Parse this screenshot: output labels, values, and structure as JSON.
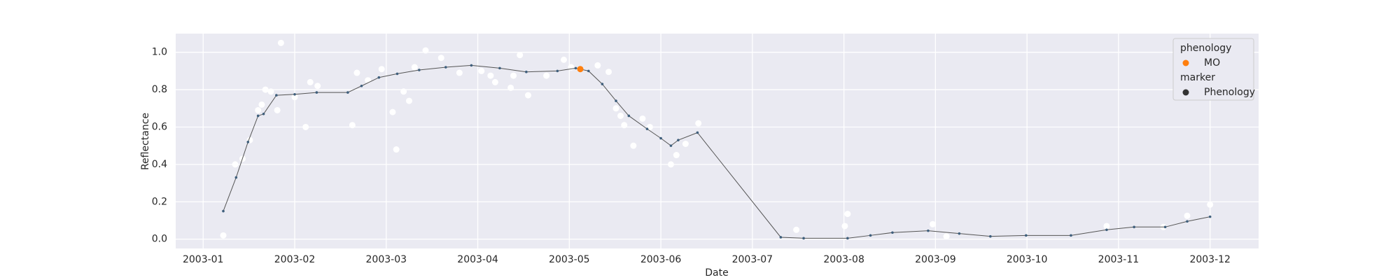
{
  "chart_data": {
    "type": "line",
    "xlabel": "Date",
    "ylabel": "Reflectance",
    "xlim": [
      0.7,
      12.53
    ],
    "ylim": [
      -0.05,
      1.1
    ],
    "xticks": [
      {
        "value": 1,
        "label": "2003-01"
      },
      {
        "value": 2,
        "label": "2003-02"
      },
      {
        "value": 3,
        "label": "2003-03"
      },
      {
        "value": 4,
        "label": "2003-04"
      },
      {
        "value": 5,
        "label": "2003-05"
      },
      {
        "value": 6,
        "label": "2003-06"
      },
      {
        "value": 7,
        "label": "2003-07"
      },
      {
        "value": 8,
        "label": "2003-08"
      },
      {
        "value": 9,
        "label": "2003-09"
      },
      {
        "value": 10,
        "label": "2003-10"
      },
      {
        "value": 11,
        "label": "2003-11"
      },
      {
        "value": 12,
        "label": "2003-12"
      }
    ],
    "yticks": [
      {
        "value": 0,
        "label": "0.0"
      },
      {
        "value": 0.2,
        "label": "0.2"
      },
      {
        "value": 0.4,
        "label": "0.4"
      },
      {
        "value": 0.6,
        "label": "0.6"
      },
      {
        "value": 0.8,
        "label": "0.8"
      },
      {
        "value": 1,
        "label": "1.0"
      }
    ],
    "grid": true,
    "background": "#eaeaf2",
    "series": [
      {
        "type": "scatter",
        "color": "#ffffff",
        "x": [
          1.22,
          1.35,
          1.43,
          1.51,
          1.6,
          1.64,
          1.68,
          1.74,
          1.81,
          1.85,
          2.0,
          2.12,
          2.17,
          2.25,
          2.63,
          2.68,
          2.8,
          2.95,
          3.07,
          3.11,
          3.19,
          3.25,
          3.31,
          3.43,
          3.6,
          3.8,
          4.04,
          4.14,
          4.19,
          4.36,
          4.39,
          4.46,
          4.55,
          4.75,
          4.94,
          5.02,
          5.31,
          5.43,
          5.51,
          5.56,
          5.6,
          5.7,
          5.8,
          5.88,
          6.11,
          6.17,
          6.27,
          6.41,
          7.48,
          8.01,
          8.04,
          8.97,
          9.12,
          10.87,
          11.49,
          11.75,
          12.0
        ],
        "values": [
          0.02,
          0.4,
          0.43,
          0.53,
          0.69,
          0.72,
          0.8,
          0.79,
          0.69,
          1.05,
          0.76,
          0.6,
          0.84,
          0.82,
          0.61,
          0.89,
          0.85,
          0.91,
          0.68,
          0.48,
          0.79,
          0.74,
          0.92,
          1.01,
          0.97,
          0.89,
          0.9,
          0.875,
          0.84,
          0.81,
          0.875,
          0.985,
          0.77,
          0.875,
          0.96,
          0.92,
          0.93,
          0.895,
          0.7,
          0.66,
          0.61,
          0.5,
          0.645,
          0.6,
          0.4,
          0.45,
          0.51,
          0.62,
          0.05,
          0.07,
          0.135,
          0.08,
          0.015,
          0.07,
          0.065,
          0.125,
          0.185
        ]
      },
      {
        "type": "line",
        "color": "#555555",
        "marker_color": "#3f5f7c",
        "x": [
          1.22,
          1.36,
          1.49,
          1.6,
          1.66,
          1.8,
          2.0,
          2.24,
          2.58,
          2.73,
          2.92,
          3.12,
          3.36,
          3.65,
          3.93,
          4.24,
          4.53,
          4.87,
          5.07,
          5.21,
          5.36,
          5.51,
          5.65,
          5.85,
          6.0,
          6.11,
          6.19,
          6.4,
          7.31,
          7.56,
          8.04,
          8.29,
          8.53,
          8.92,
          9.26,
          9.6,
          9.99,
          10.48,
          10.87,
          11.17,
          11.51,
          11.75,
          12.0
        ],
        "values": [
          0.15,
          0.33,
          0.52,
          0.66,
          0.67,
          0.77,
          0.775,
          0.785,
          0.785,
          0.82,
          0.865,
          0.885,
          0.905,
          0.92,
          0.93,
          0.915,
          0.895,
          0.9,
          0.915,
          0.9,
          0.83,
          0.74,
          0.66,
          0.59,
          0.54,
          0.5,
          0.53,
          0.57,
          0.01,
          0.005,
          0.005,
          0.02,
          0.035,
          0.045,
          0.03,
          0.015,
          0.02,
          0.02,
          0.05,
          0.065,
          0.065,
          0.095,
          0.12
        ]
      },
      {
        "type": "scatter",
        "name": "MO",
        "color": "#ff7f0e",
        "x": [
          5.12
        ],
        "values": [
          0.91
        ]
      }
    ],
    "legend": {
      "corner": "upper right",
      "groups": [
        {
          "title": "phenology"
        },
        {
          "title": "marker",
          "entries": [
            {
              "label": "Phenology",
              "color": "#333333"
            }
          ]
        }
      ]
    }
  }
}
